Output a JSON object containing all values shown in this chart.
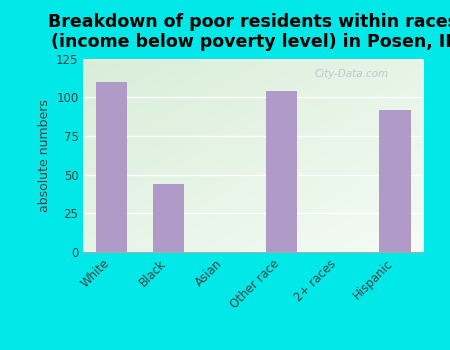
{
  "categories": [
    "White",
    "Black",
    "Asian",
    "Other race",
    "2+ races",
    "Hispanic"
  ],
  "values": [
    110,
    44,
    0,
    104,
    0,
    92
  ],
  "bar_color": "#b09ac8",
  "background_color": "#00e8e8",
  "plot_bg_grad_top_left": "#d8edd8",
  "plot_bg_grad_bottom_right": "#f5fbf5",
  "title_line1": "Breakdown of poor residents within races",
  "title_line2": "(income below poverty level) in Posen, IL",
  "ylabel": "absolute numbers",
  "ylim": [
    0,
    125
  ],
  "yticks": [
    0,
    25,
    50,
    75,
    100,
    125
  ],
  "title_fontsize": 12.5,
  "label_fontsize": 9,
  "tick_fontsize": 8.5,
  "bar_width": 0.55,
  "watermark": "City-Data.com",
  "grid_color": "#ccddcc",
  "spine_color": "#aaaaaa"
}
